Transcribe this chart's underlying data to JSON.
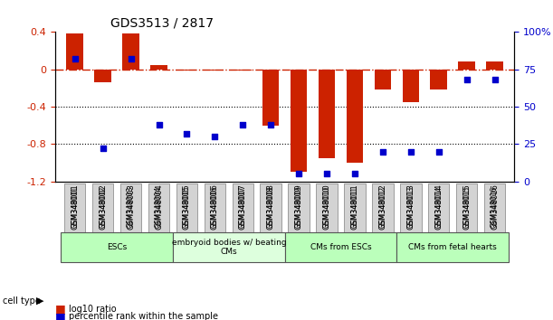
{
  "title": "GDS3513 / 2817",
  "samples": [
    "GSM348001",
    "GSM348002",
    "GSM348003",
    "GSM348004",
    "GSM348005",
    "GSM348006",
    "GSM348007",
    "GSM348008",
    "GSM348009",
    "GSM348010",
    "GSM348011",
    "GSM348012",
    "GSM348013",
    "GSM348014",
    "GSM348015",
    "GSM348016"
  ],
  "log10_ratio": [
    0.38,
    -0.14,
    0.38,
    0.05,
    -0.01,
    -0.01,
    -0.01,
    -0.6,
    -1.1,
    -0.95,
    -1.0,
    -0.22,
    -0.35,
    -0.22,
    0.08,
    0.08
  ],
  "percentile_rank": [
    82,
    22,
    82,
    38,
    32,
    30,
    38,
    38,
    5,
    5,
    5,
    20,
    20,
    20,
    68,
    68
  ],
  "cell_types": [
    {
      "label": "ESCs",
      "start": 0,
      "end": 3,
      "color": "#aaffaa"
    },
    {
      "label": "embryoid bodies w/ beating\nCMs",
      "start": 4,
      "end": 7,
      "color": "#ccffcc"
    },
    {
      "label": "CMs from ESCs",
      "start": 8,
      "end": 11,
      "color": "#aaffaa"
    },
    {
      "label": "CMs from fetal hearts",
      "start": 12,
      "end": 15,
      "color": "#aaffaa"
    }
  ],
  "ylim_left": [
    -1.2,
    0.4
  ],
  "ylim_right": [
    0,
    100
  ],
  "bar_color": "#cc2200",
  "dot_color": "#0000cc",
  "zero_line_color": "#cc2200",
  "grid_color": "#000000",
  "bg_color": "#ffffff"
}
